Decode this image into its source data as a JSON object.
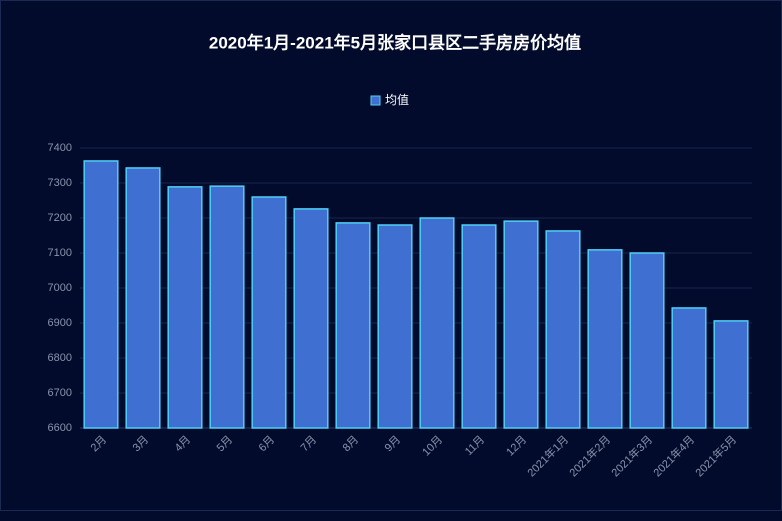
{
  "chart_data": {
    "type": "bar",
    "title": "2020年1月-2021年5月张家口县区二手房房价均值",
    "categories": [
      "2月",
      "3月",
      "4月",
      "5月",
      "6月",
      "7月",
      "8月",
      "9月",
      "10月",
      "11月",
      "12月",
      "2021年1月",
      "2021年2月",
      "2021年3月",
      "2021年4月",
      "2021年5月"
    ],
    "series": [
      {
        "name": "均值",
        "color": "#3f6fd1",
        "values": [
          7363,
          7343,
          7289,
          7291,
          7260,
          7226,
          7186,
          7180,
          7200,
          7180,
          7191,
          7163,
          7109,
          7100,
          6943,
          6906
        ]
      }
    ],
    "ylim": [
      6600,
      7400
    ],
    "yticks": [
      6600,
      6700,
      6800,
      6900,
      7000,
      7100,
      7200,
      7300,
      7400
    ],
    "grid": true
  }
}
